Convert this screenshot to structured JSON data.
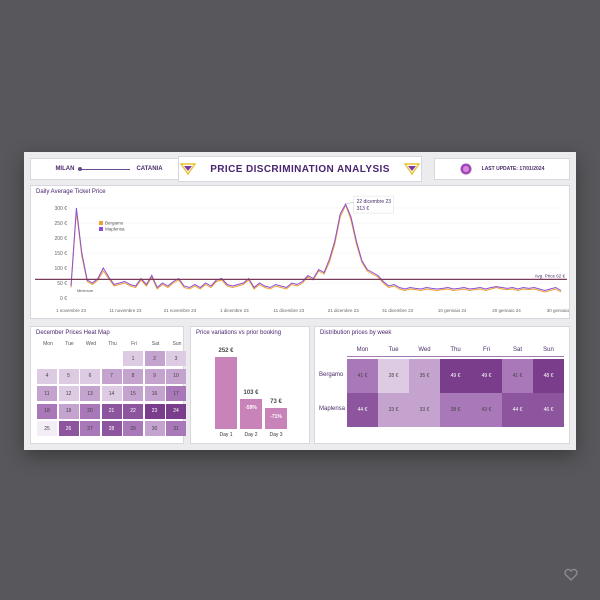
{
  "header": {
    "origin": "MILAN",
    "destination": "CATANIA",
    "title": "PRICE DISCRIMINATION ANALYSIS",
    "last_update": "LAST UPDATE: 17/01/2024"
  },
  "colors": {
    "accent": "#6b2d8f",
    "bergamo": "#f0a030",
    "maplensa": "#8a4fd6",
    "avg_line": "#7a3a5a"
  },
  "line_chart": {
    "title": "Daily Average Ticket Price",
    "legend": [
      "Bergamo",
      "Maplensa"
    ],
    "y_ticks": [
      "300 €",
      "250 €",
      "200 €",
      "150 €",
      "100 €",
      "50 €",
      "0 €"
    ],
    "x_ticks": [
      "1 novembre 23",
      "11 novembre 23",
      "21 novembre 23",
      "1 dicembre 23",
      "11 dicembre 23",
      "21 dicembre 23",
      "31 dicembre 23",
      "10 gennaio 24",
      "20 gennaio 24",
      "30 gennaio 24"
    ],
    "min_label": "Minimum",
    "avg_label": "Avg. Price 62 €",
    "tooltip_date": "22 dicembre 23",
    "tooltip_value": "313 €"
  },
  "chart_data": {
    "type": "line",
    "title": "Daily Average Ticket Price",
    "ylim": [
      0,
      300
    ],
    "avg": 62,
    "series": [
      {
        "name": "Bergamo",
        "values": [
          35,
          290,
          140,
          55,
          45,
          60,
          90,
          65,
          40,
          45,
          50,
          40,
          35,
          60,
          40,
          70,
          30,
          45,
          35,
          50,
          60,
          35,
          30,
          40,
          30,
          45,
          35,
          55,
          60,
          40,
          35,
          40,
          45,
          60,
          30,
          45,
          35,
          30,
          40,
          35,
          30,
          45,
          40,
          50,
          70,
          60,
          90,
          80,
          120,
          180,
          270,
          310,
          260,
          180,
          120,
          90,
          80,
          70,
          50,
          35,
          40,
          30,
          25,
          30,
          28,
          25,
          30,
          27,
          25,
          28,
          30,
          25,
          27,
          30,
          25,
          28,
          30,
          25,
          30,
          35,
          30,
          28,
          30,
          25,
          30,
          28,
          30,
          25,
          20,
          25,
          30,
          20
        ]
      },
      {
        "name": "Maplensa",
        "values": [
          40,
          300,
          150,
          60,
          50,
          65,
          100,
          70,
          45,
          50,
          55,
          45,
          40,
          65,
          45,
          75,
          35,
          50,
          40,
          55,
          65,
          40,
          35,
          45,
          35,
          50,
          40,
          60,
          65,
          45,
          40,
          45,
          50,
          65,
          35,
          50,
          40,
          35,
          45,
          40,
          35,
          50,
          45,
          55,
          75,
          65,
          95,
          85,
          130,
          190,
          280,
          313,
          270,
          190,
          125,
          95,
          85,
          75,
          55,
          40,
          45,
          35,
          30,
          35,
          32,
          30,
          35,
          32,
          30,
          32,
          35,
          30,
          32,
          35,
          30,
          32,
          35,
          30,
          35,
          38,
          35,
          32,
          35,
          30,
          35,
          32,
          35,
          30,
          25,
          30,
          35,
          25
        ]
      }
    ]
  },
  "heatmap": {
    "title": "December Prices Heat Map",
    "days": [
      "Mon",
      "Tue",
      "Wed",
      "Thu",
      "Fri",
      "Sat",
      "Sun"
    ],
    "rows": [
      [
        "",
        "",
        "",
        "",
        "1",
        "2",
        "3"
      ],
      [
        "4",
        "5",
        "6",
        "7",
        "8",
        "9",
        "10"
      ],
      [
        "11",
        "12",
        "13",
        "14",
        "15",
        "16",
        "17"
      ],
      [
        "18",
        "19",
        "20",
        "21",
        "22",
        "23",
        "24"
      ],
      [
        "25",
        "26",
        "27",
        "28",
        "29",
        "30",
        "31"
      ]
    ],
    "shades": [
      [
        0,
        0,
        0,
        0,
        1,
        2,
        1
      ],
      [
        1,
        1,
        1,
        2,
        2,
        2,
        2
      ],
      [
        2,
        1,
        2,
        1,
        2,
        2,
        3
      ],
      [
        3,
        2,
        3,
        4,
        4,
        5,
        5
      ],
      [
        0,
        4,
        3,
        4,
        3,
        2,
        3
      ]
    ]
  },
  "variations": {
    "title": "Price variations vs prior booking",
    "days": [
      "Day 1",
      "Day 2",
      "Day 3"
    ],
    "values": [
      "252 €",
      "103 €",
      "73 €"
    ],
    "pcts": [
      "",
      "-59%",
      "-71%"
    ],
    "ratios": [
      1.0,
      0.41,
      0.29
    ]
  },
  "distribution": {
    "title": "Distribution prices by week",
    "days": [
      "Mon",
      "Tue",
      "Wed",
      "Thu",
      "Fri",
      "Sat",
      "Sun"
    ],
    "rows": [
      {
        "name": "Bergamo",
        "values": [
          "41 €",
          "28 €",
          "35 €",
          "49 €",
          "49 €",
          "41 €",
          "48 €"
        ],
        "shades": [
          3,
          1,
          2,
          5,
          5,
          3,
          5
        ]
      },
      {
        "name": "Maplensa",
        "values": [
          "44 €",
          "33 €",
          "33 €",
          "38 €",
          "43 €",
          "44 €",
          "46 €"
        ],
        "shades": [
          4,
          2,
          2,
          3,
          3,
          4,
          4
        ]
      }
    ]
  }
}
